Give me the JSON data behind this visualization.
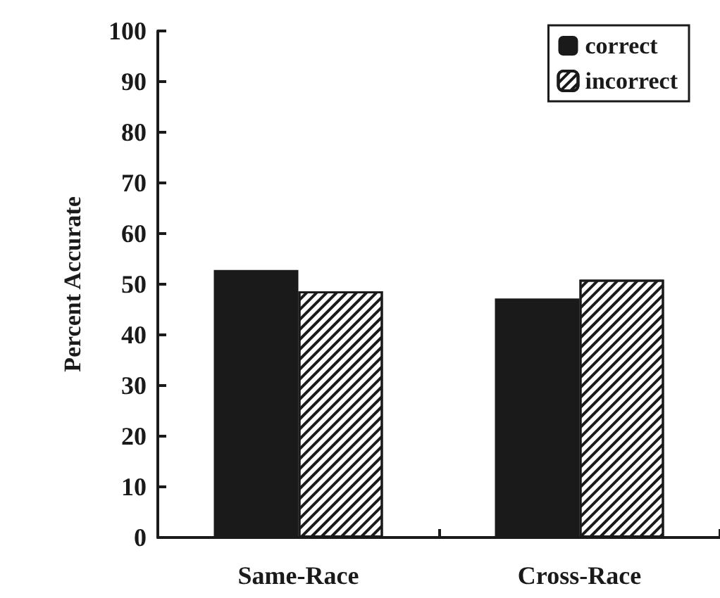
{
  "chart_data": {
    "type": "bar",
    "ylabel": "Percent Accurate",
    "categories": [
      "Same-Race",
      "Cross-Race"
    ],
    "series": [
      {
        "name": "correct",
        "color": "#1a1a1a",
        "values": [
          52.8,
          47.2
        ]
      },
      {
        "name": "incorrect",
        "color": "#ffffff",
        "values": [
          48.6,
          50.9
        ]
      }
    ],
    "ylim": [
      0,
      100
    ],
    "yticks": [
      0,
      10,
      20,
      30,
      40,
      50,
      60,
      70,
      80,
      90,
      100
    ],
    "grid": false,
    "legend": "top right"
  }
}
